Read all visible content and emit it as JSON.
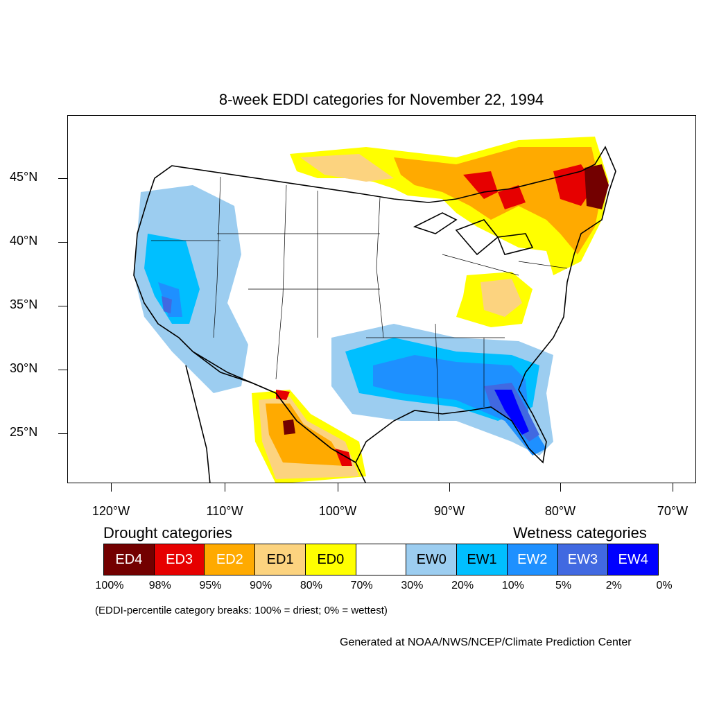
{
  "title": "8-week EDDI categories for November 22, 1994",
  "lat_labels": [
    "45°N",
    "40°N",
    "35°N",
    "30°N",
    "25°N"
  ],
  "lon_labels": [
    "120°W",
    "110°W",
    "100°W",
    "90°W",
    "80°W",
    "70°W"
  ],
  "legend": {
    "drought_heading": "Drought categories",
    "wetness_heading": "Wetness categories",
    "categories": [
      {
        "label": "ED4",
        "color": "#730000",
        "text_color": "#ffffff"
      },
      {
        "label": "ED3",
        "color": "#e60000",
        "text_color": "#ffffff"
      },
      {
        "label": "ED2",
        "color": "#ffaa00",
        "text_color": "#ffffff"
      },
      {
        "label": "ED1",
        "color": "#fcd37f",
        "text_color": "#000000"
      },
      {
        "label": "ED0",
        "color": "#ffff00",
        "text_color": "#000000"
      },
      {
        "label": "",
        "color": "#ffffff",
        "text_color": "#000000"
      },
      {
        "label": "EW0",
        "color": "#9ccdf0",
        "text_color": "#000000"
      },
      {
        "label": "EW1",
        "color": "#00bfff",
        "text_color": "#000000"
      },
      {
        "label": "EW2",
        "color": "#1e90ff",
        "text_color": "#ffffff"
      },
      {
        "label": "EW3",
        "color": "#4169e1",
        "text_color": "#ffffff"
      },
      {
        "label": "EW4",
        "color": "#0000ff",
        "text_color": "#ffffff"
      }
    ],
    "percent_breaks": [
      "100%",
      "98%",
      "95%",
      "90%",
      "80%",
      "70%",
      "30%",
      "20%",
      "10%",
      "5%",
      "2%",
      "0%"
    ],
    "footnote": "(EDDI-percentile category breaks: 100% = driest; 0% = wettest)"
  },
  "credit": "Generated at NOAA/NWS/NCEP/Climate Prediction Center"
}
